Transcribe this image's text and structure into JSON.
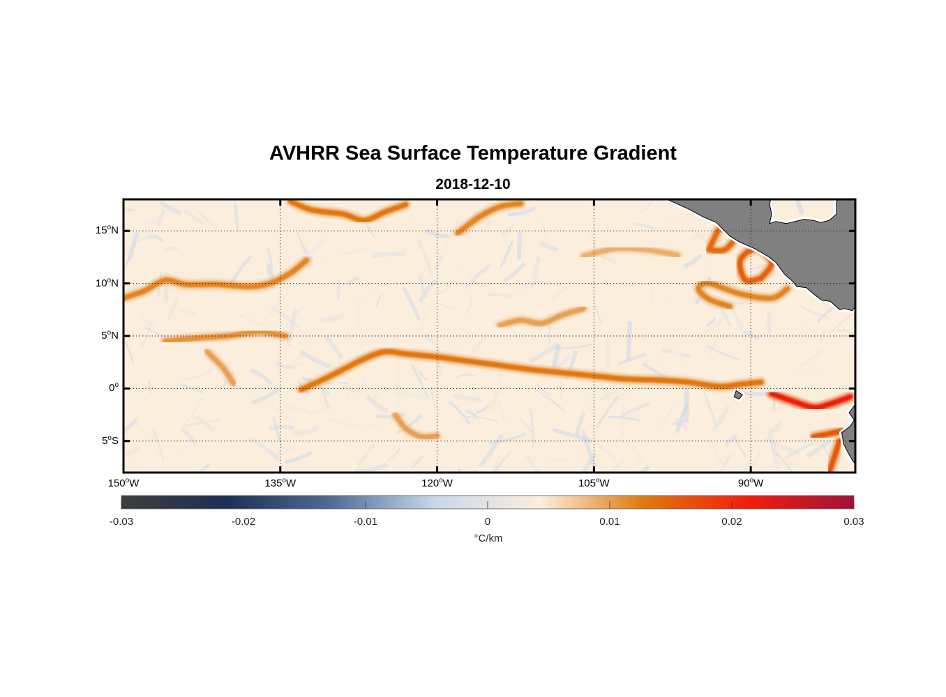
{
  "title": "AVHRR Sea Surface Temperature Gradient",
  "subtitle": "2018-12-10",
  "map": {
    "extent": {
      "lon_min": -150,
      "lon_max": -80,
      "lat_min": -8,
      "lat_max": 18
    },
    "lat_ticks": [
      {
        "value": 15,
        "num": "15",
        "hemi": "N"
      },
      {
        "value": 10,
        "num": "10",
        "hemi": "N"
      },
      {
        "value": 5,
        "num": "5",
        "hemi": "N"
      },
      {
        "value": 0,
        "num": "0",
        "hemi": ""
      },
      {
        "value": -5,
        "num": "5",
        "hemi": "S"
      }
    ],
    "lon_ticks": [
      {
        "value": -150,
        "num": "150",
        "hemi": "W"
      },
      {
        "value": -135,
        "num": "135",
        "hemi": "W"
      },
      {
        "value": -120,
        "num": "120",
        "hemi": "W"
      },
      {
        "value": -105,
        "num": "105",
        "hemi": "W"
      },
      {
        "value": -90,
        "num": "90",
        "hemi": "W"
      }
    ],
    "gridlines": "dotted",
    "land_color": "#808080",
    "ocean_base_color": "#fbeedd",
    "fronts": [
      {
        "name": "north-equatorial-front-west",
        "strength": 0.012,
        "lonlat": [
          [
            -150,
            8.6
          ],
          [
            -148,
            9.3
          ],
          [
            -146,
            10.3
          ],
          [
            -144,
            9.9
          ],
          [
            -141,
            9.9
          ],
          [
            -138,
            9.7
          ],
          [
            -136,
            10.0
          ],
          [
            -134,
            11.0
          ],
          [
            -132.5,
            12.2
          ]
        ]
      },
      {
        "name": "equatorial-front",
        "strength": 0.013,
        "lonlat": [
          [
            -133,
            -0.1
          ],
          [
            -131,
            0.8
          ],
          [
            -129,
            1.8
          ],
          [
            -127,
            2.8
          ],
          [
            -125,
            3.5
          ],
          [
            -123,
            3.3
          ],
          [
            -120,
            3.0
          ],
          [
            -117,
            2.6
          ],
          [
            -114,
            2.2
          ],
          [
            -111,
            1.8
          ],
          [
            -108,
            1.5
          ],
          [
            -105,
            1.2
          ],
          [
            -102,
            0.9
          ],
          [
            -99,
            0.8
          ],
          [
            -96,
            0.6
          ],
          [
            -93,
            0.2
          ],
          [
            -91,
            0.4
          ],
          [
            -89,
            0.6
          ]
        ]
      },
      {
        "name": "equatorial-front-west",
        "strength": 0.011,
        "lonlat": [
          [
            -146,
            4.5
          ],
          [
            -143,
            4.8
          ],
          [
            -140,
            5.0
          ],
          [
            -137,
            5.4
          ],
          [
            -134.5,
            5.0
          ]
        ]
      },
      {
        "name": "equatorial-front-east",
        "strength": 0.022,
        "lonlat": [
          [
            -88,
            -0.5
          ],
          [
            -86,
            -1.2
          ],
          [
            -84,
            -1.8
          ],
          [
            -82.5,
            -1.5
          ],
          [
            -80.5,
            -0.8
          ]
        ]
      },
      {
        "name": "costa-rica-dome",
        "strength": 0.014,
        "lonlat": [
          [
            -94,
            13.2
          ],
          [
            -93,
            15.2
          ],
          [
            -92,
            16.0
          ],
          [
            -91.5,
            14.5
          ],
          [
            -92.5,
            13.2
          ],
          [
            -94,
            13.2
          ]
        ]
      },
      {
        "name": "papagayo-eddy",
        "strength": 0.015,
        "lonlat": [
          [
            -89,
            10.5
          ],
          [
            -88,
            12.0
          ],
          [
            -89.5,
            13.3
          ],
          [
            -91,
            12.2
          ],
          [
            -90.5,
            10.3
          ],
          [
            -89,
            10.5
          ]
        ]
      },
      {
        "name": "tehuantepec-arc",
        "strength": 0.012,
        "lonlat": [
          [
            -92,
            7.8
          ],
          [
            -94,
            8.5
          ],
          [
            -95,
            9.5
          ],
          [
            -94,
            10.0
          ],
          [
            -91,
            9.0
          ],
          [
            -88,
            8.6
          ],
          [
            -86.5,
            9.5
          ]
        ]
      },
      {
        "name": "northern-front",
        "strength": 0.013,
        "lonlat": [
          [
            -134,
            17.8
          ],
          [
            -132,
            17.0
          ],
          [
            -129,
            16.6
          ],
          [
            -127,
            16.0
          ],
          [
            -125,
            16.8
          ],
          [
            -123,
            17.5
          ]
        ]
      },
      {
        "name": "north-front-2",
        "strength": 0.012,
        "lonlat": [
          [
            -118,
            14.8
          ],
          [
            -116,
            16.3
          ],
          [
            -114,
            17.3
          ],
          [
            -112,
            17.6
          ]
        ]
      },
      {
        "name": "west-3n",
        "strength": 0.01,
        "lonlat": [
          [
            -142,
            3.5
          ],
          [
            -140.5,
            2.0
          ],
          [
            -139.5,
            0.5
          ]
        ]
      },
      {
        "name": "south-front",
        "strength": 0.01,
        "lonlat": [
          [
            -124,
            -2.5
          ],
          [
            -123,
            -3.8
          ],
          [
            -121.5,
            -4.6
          ],
          [
            -120,
            -4.5
          ]
        ]
      },
      {
        "name": "north-eq-2",
        "strength": 0.01,
        "lonlat": [
          [
            -114,
            6.0
          ],
          [
            -112,
            6.5
          ],
          [
            -110,
            6.2
          ],
          [
            -108,
            7.0
          ],
          [
            -106,
            7.6
          ]
        ]
      },
      {
        "name": "mid-north",
        "strength": 0.009,
        "lonlat": [
          [
            -106,
            12.6
          ],
          [
            -103,
            13.3
          ],
          [
            -100,
            13.2
          ],
          [
            -97,
            12.7
          ]
        ]
      },
      {
        "name": "southeast",
        "strength": 0.016,
        "lonlat": [
          [
            -84,
            -4.6
          ],
          [
            -82,
            -4.2
          ],
          [
            -80.5,
            -3.8
          ]
        ]
      },
      {
        "name": "peru-coast",
        "strength": 0.016,
        "lonlat": [
          [
            -81.5,
            -5.0
          ],
          [
            -82,
            -6.5
          ],
          [
            -82.5,
            -8.0
          ]
        ]
      }
    ],
    "land": [
      {
        "name": "central-america",
        "lonlat": [
          [
            -98,
            18
          ],
          [
            -96,
            17.1
          ],
          [
            -94.5,
            16.3
          ],
          [
            -93.3,
            15.8
          ],
          [
            -92,
            14.5
          ],
          [
            -91,
            13.9
          ],
          [
            -89.6,
            13.3
          ],
          [
            -88.4,
            12.6
          ],
          [
            -87.6,
            12.0
          ],
          [
            -86.8,
            10.9
          ],
          [
            -86.0,
            10.2
          ],
          [
            -85.6,
            9.7
          ],
          [
            -84.7,
            9.6
          ],
          [
            -84,
            9.0
          ],
          [
            -83.2,
            8.4
          ],
          [
            -82.4,
            8.3
          ],
          [
            -81.5,
            7.5
          ],
          [
            -81.0,
            7.6
          ],
          [
            -80.3,
            7.4
          ],
          [
            -80,
            7.8
          ],
          [
            -80,
            18
          ],
          [
            -81.6,
            18
          ],
          [
            -81.8,
            17.8
          ],
          [
            -81.8,
            16.6
          ],
          [
            -82.5,
            16.0
          ],
          [
            -83.3,
            15.8
          ],
          [
            -84.0,
            16.0
          ],
          [
            -84.9,
            16.1
          ],
          [
            -86.6,
            15.7
          ],
          [
            -87.6,
            15.9
          ],
          [
            -88.2,
            15.7
          ],
          [
            -88.0,
            16.6
          ],
          [
            -88.2,
            17.5
          ],
          [
            -88.1,
            18
          ]
        ]
      },
      {
        "name": "ecuador-peru",
        "lonlat": [
          [
            -80,
            -1.5
          ],
          [
            -80.6,
            -2.3
          ],
          [
            -80.1,
            -3.0
          ],
          [
            -80.5,
            -3.6
          ],
          [
            -81.3,
            -4.2
          ],
          [
            -81.1,
            -5.3
          ],
          [
            -80.7,
            -6.1
          ],
          [
            -80.3,
            -6.8
          ],
          [
            -80,
            -7.2
          ]
        ]
      },
      {
        "name": "galapagos",
        "lonlat": [
          [
            -91.4,
            -0.2
          ],
          [
            -90.8,
            -0.6
          ],
          [
            -91.1,
            -1.0
          ],
          [
            -91.6,
            -0.8
          ],
          [
            -91.4,
            -0.2
          ]
        ]
      }
    ]
  },
  "colorbar": {
    "min": -0.03,
    "max": 0.03,
    "ticks": [
      "-0.03",
      "-0.02",
      "-0.01",
      "0",
      "0.01",
      "0.02",
      "0.03"
    ],
    "unit": "°C/km",
    "colormap": [
      "#3d3d3d",
      "#1e2f55",
      "#4d6c96",
      "#c9d8ea",
      "#fbeedd",
      "#e0780c",
      "#f21d0c",
      "#a1123a"
    ]
  }
}
